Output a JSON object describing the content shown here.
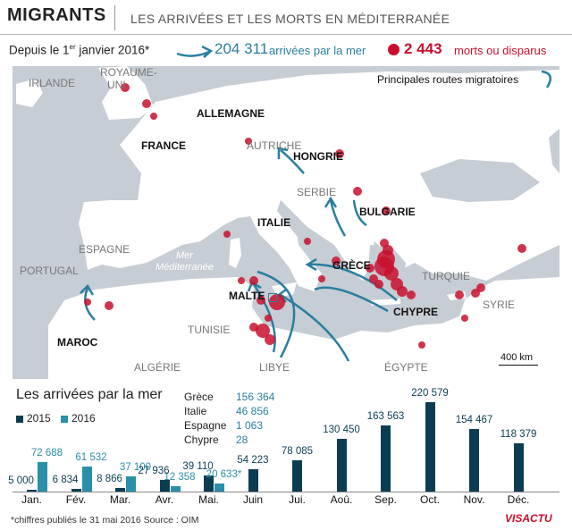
{
  "header": {
    "title": "MIGRANTS",
    "subtitle": "LES ARRIVÉES ET LES MORTS EN MÉDITERRANÉE"
  },
  "summary": {
    "since_prefix": "Depuis le 1",
    "since_sup": "er",
    "since_suffix": " janvier 2016*",
    "arrivals_value": "204 311",
    "arrivals_label": "arrivées par la mer",
    "deaths_value": "2 443",
    "deaths_label": "morts ou disparus"
  },
  "map": {
    "routes_label": "Principales routes migratoires",
    "scale_label": "400 km",
    "sea_label": [
      "Mer",
      "Méditerranée"
    ],
    "countries_bold": [
      "ALLEMAGNE",
      "FRANCE",
      "HONGRIE",
      "ITALIE",
      "BULGARIE",
      "GRÈCE",
      "MALTE",
      "CHYPRE",
      "MAROC"
    ],
    "countries_light": [
      "IRLANDE",
      "ROYAUME-",
      "UNI",
      "AUTRICHE",
      "SERBIE",
      "ESPAGNE",
      "PORTUGAL",
      "TURQUIE",
      "SYRIE",
      "TUNISIE",
      "ALGÉRIE",
      "LIBYE",
      "ÉGYPTE"
    ],
    "colors": {
      "land": "#ffffff",
      "sea": "#c7cdd4",
      "route": "#2a7fa0",
      "death": "#c8102e"
    }
  },
  "arrivals_section": {
    "title": "Les arrivées par la mer",
    "legend": [
      {
        "label": "2015",
        "color": "#0b3d52"
      },
      {
        "label": "2016",
        "color": "#2a8fa8"
      }
    ],
    "table": [
      {
        "country": "Grèce",
        "value": "156 364"
      },
      {
        "country": "Italie",
        "value": "46 856"
      },
      {
        "country": "Espagne",
        "value": "1 063"
      },
      {
        "country": "Chypre",
        "value": "28"
      }
    ]
  },
  "chart_data": {
    "type": "bar",
    "title": "Les arrivées par la mer",
    "categories": [
      "Jan.",
      "Fév.",
      "Mar.",
      "Avr.",
      "Mai.",
      "Juin",
      "Jui.",
      "Aoû.",
      "Sep.",
      "Oct.",
      "Nov.",
      "Déc."
    ],
    "series": [
      {
        "name": "2015",
        "values": [
          5000,
          6834,
          8866,
          27936,
          39110,
          54223,
          78085,
          130450,
          163563,
          220579,
          154467,
          118379
        ],
        "labels": [
          "5 000",
          "6 834",
          "8 866",
          "27 936",
          "39 110",
          "54 223",
          "78 085",
          "130 450",
          "163 563",
          "220 579",
          "154 467",
          "118 379"
        ]
      },
      {
        "name": "2016",
        "values": [
          72688,
          61532,
          37100,
          12358,
          20633,
          null,
          null,
          null,
          null,
          null,
          null,
          null
        ],
        "labels": [
          "72 688",
          "61 532",
          "37 100",
          "12 358",
          "20 633*",
          "",
          "",
          "",
          "",
          "",
          "",
          ""
        ]
      }
    ],
    "ylim": [
      0,
      220579
    ],
    "grid": false,
    "legend": "top-left"
  },
  "footer": {
    "note": "*chiffres publiés le 31 mai 2016   Source : OIM",
    "logo": "VISACTU"
  }
}
